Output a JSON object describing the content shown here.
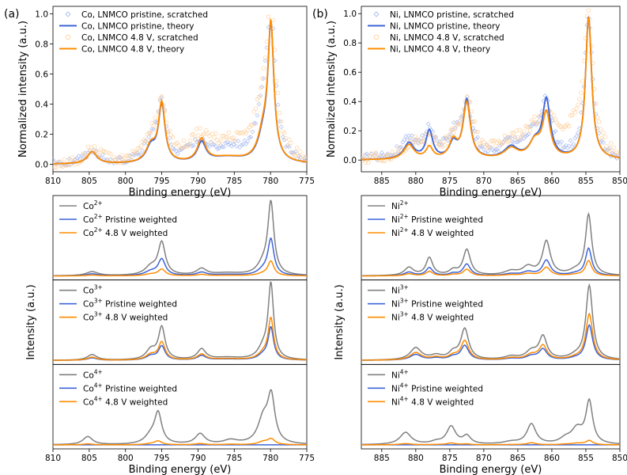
{
  "colors": {
    "blue": "#3d64d8",
    "orange": "#ff8c00",
    "gray": "#808080",
    "blue_light": "#aabdf2",
    "orange_light": "#ffcf99"
  },
  "chart_data": [
    {
      "id": "a_top",
      "panel_label": "(a)",
      "type": "line",
      "xlabel": "Binding energy (eV)",
      "ylabel": "Normalized intensity (a.u.)",
      "xlim": [
        810,
        775
      ],
      "ylim": [
        -0.05,
        1.05
      ],
      "xticks": [
        "810",
        "805",
        "800",
        "795",
        "790",
        "785",
        "780",
        "775"
      ],
      "yticks": [
        "0.0",
        "0.2",
        "0.4",
        "0.6",
        "0.8",
        "1.0"
      ],
      "legend_position": "top-left",
      "series": [
        {
          "name": "Co, LNMCO pristine, scratched",
          "style": "markers",
          "color": "blue_light",
          "baseline": 0,
          "scatter": 0.025,
          "peaks": [
            [
              804.6,
              1.2,
              0.09
            ],
            [
              796.5,
              1.2,
              0.12
            ],
            [
              795.0,
              0.7,
              0.38
            ],
            [
              790.0,
              1.5,
              0.11
            ],
            [
              786.0,
              3.0,
              0.09
            ],
            [
              781.0,
              1.2,
              0.3
            ],
            [
              779.9,
              0.65,
              0.92
            ]
          ]
        },
        {
          "name": "Co, LNMCO pristine, theory",
          "style": "line",
          "color": "blue",
          "baseline": 0,
          "peaks": [
            [
              804.6,
              0.8,
              0.08
            ],
            [
              796.5,
              0.8,
              0.1
            ],
            [
              795.0,
              0.55,
              0.38
            ],
            [
              789.5,
              0.7,
              0.13
            ],
            [
              786.0,
              3.0,
              0.04
            ],
            [
              781.0,
              0.9,
              0.15
            ],
            [
              779.95,
              0.5,
              0.88
            ]
          ]
        },
        {
          "name": "Co, LNMCO 4.8 V, scratched",
          "style": "markers",
          "color": "orange_light",
          "baseline": 0,
          "scatter": 0.035,
          "peaks": [
            [
              804.6,
              1.3,
              0.09
            ],
            [
              796.5,
              1.3,
              0.14
            ],
            [
              795.0,
              0.75,
              0.34
            ],
            [
              790.0,
              1.8,
              0.13
            ],
            [
              786.0,
              3.5,
              0.12
            ],
            [
              781.0,
              1.4,
              0.34
            ],
            [
              779.9,
              0.7,
              0.88
            ]
          ]
        },
        {
          "name": "Co, LNMCO 4.8 V, theory",
          "style": "line",
          "color": "orange",
          "baseline": 0,
          "peaks": [
            [
              804.6,
              0.8,
              0.08
            ],
            [
              796.5,
              0.8,
              0.11
            ],
            [
              795.0,
              0.55,
              0.39
            ],
            [
              789.5,
              0.7,
              0.15
            ],
            [
              786.0,
              3.0,
              0.04
            ],
            [
              781.0,
              0.9,
              0.17
            ],
            [
              779.95,
              0.5,
              0.88
            ]
          ]
        }
      ]
    },
    {
      "id": "b_top",
      "panel_label": "(b)",
      "type": "line",
      "xlabel": "Binding energy (eV)",
      "ylabel": "Normalized intensity (a.u.)",
      "xlim": [
        888,
        850
      ],
      "ylim": [
        -0.08,
        1.05
      ],
      "xticks": [
        "885",
        "880",
        "875",
        "870",
        "865",
        "860",
        "855",
        "850"
      ],
      "yticks": [
        "0.0",
        "0.2",
        "0.4",
        "0.6",
        "0.8",
        "1.0"
      ],
      "legend_position": "top-left",
      "series": [
        {
          "name": "Ni, LNMCO pristine, scratched",
          "style": "markers",
          "color": "blue_light",
          "baseline": 0,
          "scatter": 0.03,
          "peaks": [
            [
              881,
              1.6,
              0.12
            ],
            [
              878,
              1.1,
              0.18
            ],
            [
              874.5,
              1.0,
              0.14
            ],
            [
              872.5,
              0.9,
              0.36
            ],
            [
              866,
              2.0,
              0.09
            ],
            [
              862.5,
              1.5,
              0.14
            ],
            [
              860.8,
              0.95,
              0.34
            ],
            [
              854.6,
              0.7,
              0.98
            ]
          ]
        },
        {
          "name": "Ni, LNMCO pristine, theory",
          "style": "line",
          "color": "blue",
          "baseline": 0,
          "peaks": [
            [
              881,
              0.9,
              0.11
            ],
            [
              878,
              0.6,
              0.19
            ],
            [
              874.5,
              0.7,
              0.1
            ],
            [
              872.5,
              0.65,
              0.4
            ],
            [
              866,
              1.2,
              0.08
            ],
            [
              862.5,
              1.0,
              0.1
            ],
            [
              860.8,
              0.7,
              0.39
            ],
            [
              854.6,
              0.55,
              0.97
            ]
          ]
        },
        {
          "name": "Ni, LNMCO 4.8 V, scratched",
          "style": "markers",
          "color": "orange_light",
          "baseline": 0,
          "scatter": 0.035,
          "peaks": [
            [
              880.5,
              1.8,
              0.1
            ],
            [
              878,
              1.3,
              0.08
            ],
            [
              874.5,
              1.2,
              0.12
            ],
            [
              872.3,
              1.0,
              0.36
            ],
            [
              866,
              2.2,
              0.1
            ],
            [
              862.5,
              1.8,
              0.15
            ],
            [
              860.5,
              1.2,
              0.22
            ],
            [
              856.5,
              1.8,
              0.18
            ],
            [
              854.6,
              0.8,
              0.92
            ]
          ]
        },
        {
          "name": "Ni, LNMCO 4.8 V, theory",
          "style": "line",
          "color": "orange",
          "baseline": 0,
          "peaks": [
            [
              881,
              0.9,
              0.1
            ],
            [
              878,
              0.6,
              0.08
            ],
            [
              874.5,
              0.7,
              0.12
            ],
            [
              872.5,
              0.65,
              0.38
            ],
            [
              866,
              1.2,
              0.07
            ],
            [
              862.5,
              1.0,
              0.11
            ],
            [
              860.8,
              0.7,
              0.3
            ],
            [
              854.6,
              0.55,
              0.97
            ]
          ]
        }
      ]
    },
    {
      "id": "a_bottom",
      "type": "line",
      "xlabel": "Binding energy (eV)",
      "ylabel": "Intensity (a.u.)",
      "xlim": [
        810,
        775
      ],
      "xticks": [
        "810",
        "805",
        "800",
        "795",
        "790",
        "785",
        "780",
        "775"
      ],
      "subplots": [
        {
          "ylim": [
            -0.05,
            1.0
          ],
          "legend": [
            {
              "base": "Co",
              "ion": "2+",
              "suffix": ""
            },
            {
              "base": "Co",
              "ion": "2+",
              "suffix": " Pristine weighted"
            },
            {
              "base": "Co",
              "ion": "2+",
              "suffix": " 4.8 V weighted"
            }
          ],
          "peaks": [
            [
              804.6,
              1.0,
              0.05
            ],
            [
              796.5,
              1.0,
              0.1
            ],
            [
              795.0,
              0.6,
              0.4
            ],
            [
              789.5,
              0.8,
              0.08
            ],
            [
              786,
              2.5,
              0.03
            ],
            [
              781,
              1.0,
              0.12
            ],
            [
              779.95,
              0.5,
              0.88
            ]
          ],
          "weights": [
            1.0,
            0.5,
            0.2
          ]
        },
        {
          "ylim": [
            -0.05,
            1.0
          ],
          "legend": [
            {
              "base": "Co",
              "ion": "3+",
              "suffix": ""
            },
            {
              "base": "Co",
              "ion": "3+",
              "suffix": " Pristine weighted"
            },
            {
              "base": "Co",
              "ion": "3+",
              "suffix": " 4.8 V weighted"
            }
          ],
          "peaks": [
            [
              804.6,
              0.8,
              0.07
            ],
            [
              796.5,
              0.8,
              0.12
            ],
            [
              795.0,
              0.55,
              0.4
            ],
            [
              789.5,
              0.7,
              0.13
            ],
            [
              786,
              2.5,
              0.03
            ],
            [
              781,
              0.9,
              0.13
            ],
            [
              779.95,
              0.45,
              0.92
            ]
          ],
          "weights": [
            1.0,
            0.43,
            0.55
          ]
        },
        {
          "ylim": [
            -0.05,
            1.0
          ],
          "legend": [
            {
              "base": "Co",
              "ion": "4+",
              "suffix": ""
            },
            {
              "base": "Co",
              "ion": "4+",
              "suffix": " Pristine weighted"
            },
            {
              "base": "Co",
              "ion": "4+",
              "suffix": " 4.8 V weighted"
            }
          ],
          "peaks": [
            [
              805.2,
              0.8,
              0.1
            ],
            [
              796.5,
              1.0,
              0.1
            ],
            [
              795.5,
              0.6,
              0.37
            ],
            [
              789.7,
              0.8,
              0.13
            ],
            [
              785.5,
              1.2,
              0.05
            ],
            [
              781,
              0.9,
              0.3
            ],
            [
              779.9,
              0.6,
              0.56
            ]
          ],
          "weights": [
            1.0,
            0.0,
            0.12
          ]
        }
      ]
    },
    {
      "id": "b_bottom",
      "type": "line",
      "xlabel": "Binding energy (eV)",
      "ylabel": "Intensity (a.u.)",
      "xlim": [
        888,
        850
      ],
      "xticks": [
        "885",
        "880",
        "875",
        "870",
        "865",
        "860",
        "855",
        "850"
      ],
      "subplots": [
        {
          "ylim": [
            -0.05,
            1.0
          ],
          "legend": [
            {
              "base": "Ni",
              "ion": "2+",
              "suffix": ""
            },
            {
              "base": "Ni",
              "ion": "2+",
              "suffix": " Pristine weighted"
            },
            {
              "base": "Ni",
              "ion": "2+",
              "suffix": " 4.8 V weighted"
            }
          ],
          "peaks": [
            [
              881,
              0.8,
              0.1
            ],
            [
              878,
              0.6,
              0.22
            ],
            [
              874.5,
              0.7,
              0.06
            ],
            [
              872.5,
              0.65,
              0.32
            ],
            [
              866,
              1.2,
              0.05
            ],
            [
              863.5,
              1.0,
              0.1
            ],
            [
              860.8,
              0.7,
              0.42
            ],
            [
              856.5,
              1.2,
              0.05
            ],
            [
              854.6,
              0.55,
              0.75
            ]
          ],
          "weights": [
            1.0,
            0.45,
            0.25
          ]
        },
        {
          "ylim": [
            -0.05,
            1.0
          ],
          "legend": [
            {
              "base": "Ni",
              "ion": "3+",
              "suffix": ""
            },
            {
              "base": "Ni",
              "ion": "3+",
              "suffix": " Pristine weighted"
            },
            {
              "base": "Ni",
              "ion": "3+",
              "suffix": " 4.8 V weighted"
            }
          ],
          "peaks": [
            [
              880,
              1.0,
              0.15
            ],
            [
              877,
              1.0,
              0.05
            ],
            [
              874.5,
              0.8,
              0.08
            ],
            [
              872.8,
              0.7,
              0.38
            ],
            [
              866,
              1.2,
              0.04
            ],
            [
              863,
              1.0,
              0.1
            ],
            [
              861.3,
              0.7,
              0.28
            ],
            [
              856.5,
              1.2,
              0.04
            ],
            [
              854.5,
              0.6,
              0.92
            ]
          ],
          "weights": [
            1.0,
            0.47,
            0.62
          ]
        },
        {
          "ylim": [
            -0.05,
            1.0
          ],
          "legend": [
            {
              "base": "Ni",
              "ion": "4+",
              "suffix": ""
            },
            {
              "base": "Ni",
              "ion": "4+",
              "suffix": " Pristine weighted"
            },
            {
              "base": "Ni",
              "ion": "4+",
              "suffix": " 4.8 V weighted"
            }
          ],
          "peaks": [
            [
              881.5,
              1.0,
              0.15
            ],
            [
              877,
              1.0,
              0.03
            ],
            [
              874.8,
              0.8,
              0.22
            ],
            [
              872.5,
              0.7,
              0.1
            ],
            [
              866,
              1.5,
              0.03
            ],
            [
              863,
              0.8,
              0.25
            ],
            [
              858,
              1.0,
              0.06
            ],
            [
              856.3,
              1.0,
              0.18
            ],
            [
              854.5,
              0.6,
              0.52
            ]
          ],
          "weights": [
            1.0,
            0.0,
            0.1
          ]
        }
      ]
    }
  ]
}
